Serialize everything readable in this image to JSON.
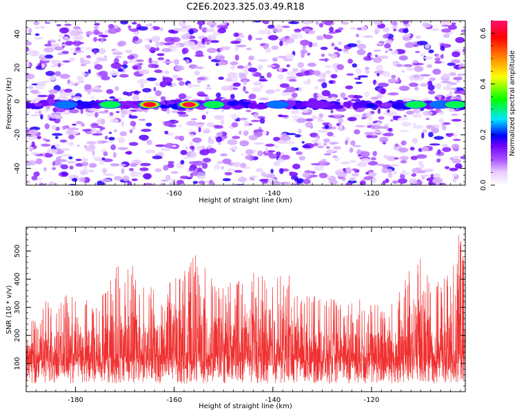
{
  "title": "C2E6.2023.325.03.49.R18",
  "chart_data": [
    {
      "type": "heatmap",
      "xlabel": "Height of straight line (km)",
      "ylabel": "Frequency (Hz)",
      "xlim": [
        -190,
        -101
      ],
      "ylim": [
        -50,
        48
      ],
      "xticks": [
        -180,
        -160,
        -140,
        -120
      ],
      "yticks": [
        -40,
        -20,
        0,
        20,
        40
      ],
      "colorbar": {
        "label": "Normalized spectral amplitude",
        "range": [
          0,
          0.65
        ],
        "ticks": [
          0.0,
          0.2,
          0.4,
          0.6
        ],
        "colormap": [
          "#ffffff",
          "#e6ccff",
          "#a64dff",
          "#7000ff",
          "#0000ff",
          "#00e5ff",
          "#00ff00",
          "#ffff00",
          "#ff8000",
          "#ff0000",
          "#ff1070"
        ]
      },
      "band": {
        "center_frequency": -2,
        "hotspots": [
          {
            "x": -182,
            "amp": 0.28
          },
          {
            "x": -173,
            "amp": 0.38
          },
          {
            "x": -165,
            "amp": 0.62
          },
          {
            "x": -157,
            "amp": 0.64
          },
          {
            "x": -152,
            "amp": 0.35
          },
          {
            "x": -139,
            "amp": 0.25
          },
          {
            "x": -131,
            "amp": 0.2
          },
          {
            "x": -111,
            "amp": 0.38
          },
          {
            "x": -106,
            "amp": 0.3
          },
          {
            "x": -103,
            "amp": 0.36
          }
        ]
      }
    },
    {
      "type": "line",
      "xlabel": "Height of straight line (km)",
      "ylabel": "SNR (10 * v/v)",
      "xlim": [
        -190,
        -101
      ],
      "ylim": [
        0,
        585
      ],
      "xticks": [
        -180,
        -160,
        -140,
        -120
      ],
      "yticks": [
        100,
        200,
        300,
        400,
        500
      ],
      "series_color": "#f03030",
      "envelope": [
        {
          "x": -190,
          "peak": 230
        },
        {
          "x": -185,
          "peak": 350
        },
        {
          "x": -180,
          "peak": 340
        },
        {
          "x": -175,
          "peak": 330
        },
        {
          "x": -171,
          "peak": 480
        },
        {
          "x": -169,
          "peak": 500
        },
        {
          "x": -166,
          "peak": 370
        },
        {
          "x": -162,
          "peak": 380
        },
        {
          "x": -158,
          "peak": 440
        },
        {
          "x": -155,
          "peak": 510
        },
        {
          "x": -152,
          "peak": 400
        },
        {
          "x": -148,
          "peak": 400
        },
        {
          "x": -145,
          "peak": 430
        },
        {
          "x": -140,
          "peak": 400
        },
        {
          "x": -137,
          "peak": 430
        },
        {
          "x": -134,
          "peak": 360
        },
        {
          "x": -130,
          "peak": 330
        },
        {
          "x": -125,
          "peak": 330
        },
        {
          "x": -120,
          "peak": 330
        },
        {
          "x": -115,
          "peak": 340
        },
        {
          "x": -110,
          "peak": 510
        },
        {
          "x": -107,
          "peak": 380
        },
        {
          "x": -104,
          "peak": 440
        },
        {
          "x": -102,
          "peak": 590
        },
        {
          "x": -101,
          "peak": 400
        }
      ],
      "baseline": 130
    }
  ]
}
